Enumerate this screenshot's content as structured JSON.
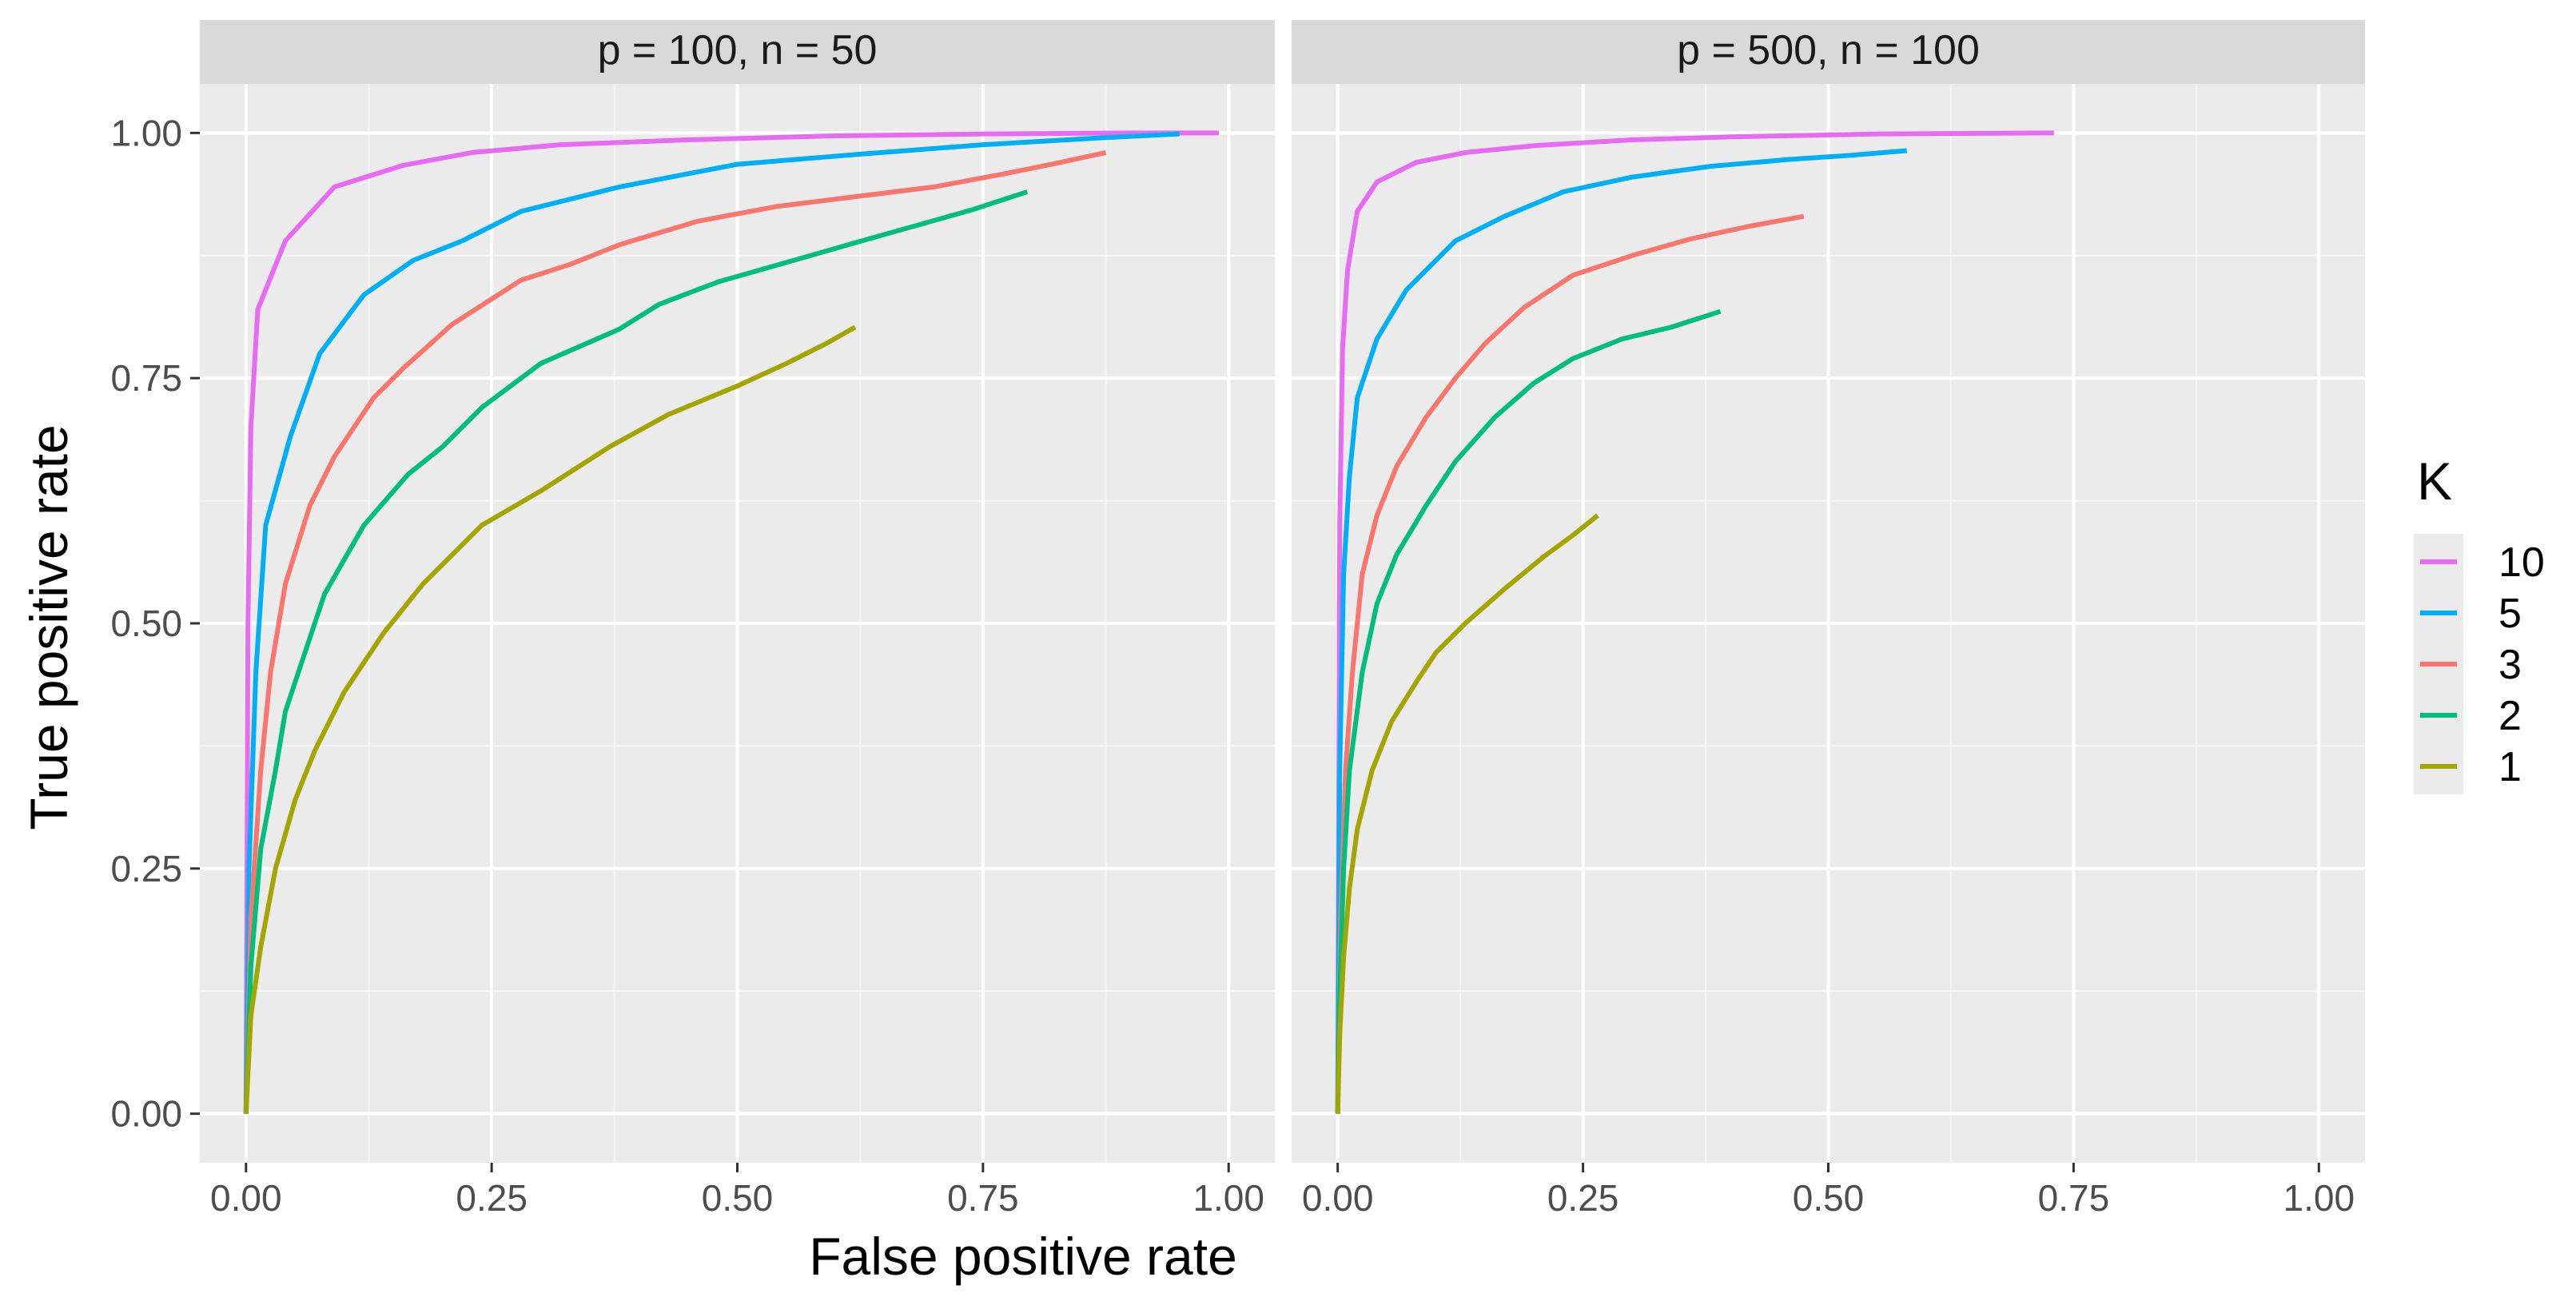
{
  "chart_data": {
    "type": "line",
    "xlabel": "False positive rate",
    "ylabel": "True positive rate",
    "xlim": [
      -0.047,
      1.047
    ],
    "ylim": [
      -0.05,
      1.05
    ],
    "x_ticks": [
      0,
      0.25,
      0.5,
      0.75,
      1
    ],
    "x_tick_labels": [
      "0.00",
      "0.25",
      "0.50",
      "0.75",
      "1.00"
    ],
    "y_ticks": [
      0,
      0.25,
      0.5,
      0.75,
      1
    ],
    "y_tick_labels": [
      "0.00",
      "0.25",
      "0.50",
      "0.75",
      "1.00"
    ],
    "grid": true,
    "legend": {
      "title": "K",
      "position": "right",
      "entries": [
        {
          "label": "10",
          "color": "#E76BF3"
        },
        {
          "label": "5",
          "color": "#00B0F6"
        },
        {
          "label": "3",
          "color": "#F8766D"
        },
        {
          "label": "2",
          "color": "#00BF7D"
        },
        {
          "label": "1",
          "color": "#A3A500"
        }
      ]
    },
    "panels": [
      {
        "strip": "p = 100, n = 50",
        "series": [
          {
            "name": "10",
            "color": "#E76BF3",
            "points": [
              [
                0,
                0
              ],
              [
                0.002,
                0.5
              ],
              [
                0.005,
                0.7
              ],
              [
                0.012,
                0.82
              ],
              [
                0.04,
                0.89
              ],
              [
                0.09,
                0.945
              ],
              [
                0.16,
                0.967
              ],
              [
                0.23,
                0.98
              ],
              [
                0.32,
                0.988
              ],
              [
                0.45,
                0.993
              ],
              [
                0.6,
                0.997
              ],
              [
                0.75,
                0.999
              ],
              [
                0.9,
                1.0
              ],
              [
                0.99,
                1.0
              ]
            ]
          },
          {
            "name": "5",
            "color": "#00B0F6",
            "points": [
              [
                0,
                0
              ],
              [
                0.003,
                0.25
              ],
              [
                0.01,
                0.45
              ],
              [
                0.02,
                0.6
              ],
              [
                0.045,
                0.69
              ],
              [
                0.075,
                0.775
              ],
              [
                0.12,
                0.835
              ],
              [
                0.17,
                0.87
              ],
              [
                0.22,
                0.89
              ],
              [
                0.28,
                0.92
              ],
              [
                0.38,
                0.945
              ],
              [
                0.5,
                0.968
              ],
              [
                0.62,
                0.978
              ],
              [
                0.75,
                0.988
              ],
              [
                0.87,
                0.995
              ],
              [
                0.95,
                0.999
              ]
            ]
          },
          {
            "name": "3",
            "color": "#F8766D",
            "points": [
              [
                0,
                0
              ],
              [
                0.005,
                0.2
              ],
              [
                0.015,
                0.35
              ],
              [
                0.025,
                0.45
              ],
              [
                0.04,
                0.54
              ],
              [
                0.065,
                0.62
              ],
              [
                0.09,
                0.67
              ],
              [
                0.13,
                0.73
              ],
              [
                0.16,
                0.76
              ],
              [
                0.21,
                0.805
              ],
              [
                0.28,
                0.85
              ],
              [
                0.33,
                0.866
              ],
              [
                0.38,
                0.886
              ],
              [
                0.46,
                0.91
              ],
              [
                0.54,
                0.925
              ],
              [
                0.62,
                0.935
              ],
              [
                0.7,
                0.945
              ],
              [
                0.77,
                0.958
              ],
              [
                0.82,
                0.968
              ],
              [
                0.875,
                0.98
              ]
            ]
          },
          {
            "name": "2",
            "color": "#00BF7D",
            "points": [
              [
                0,
                0
              ],
              [
                0.005,
                0.15
              ],
              [
                0.015,
                0.27
              ],
              [
                0.03,
                0.35
              ],
              [
                0.04,
                0.41
              ],
              [
                0.06,
                0.47
              ],
              [
                0.08,
                0.53
              ],
              [
                0.12,
                0.6
              ],
              [
                0.165,
                0.652
              ],
              [
                0.2,
                0.68
              ],
              [
                0.24,
                0.72
              ],
              [
                0.3,
                0.765
              ],
              [
                0.38,
                0.8
              ],
              [
                0.42,
                0.825
              ],
              [
                0.48,
                0.848
              ],
              [
                0.55,
                0.868
              ],
              [
                0.62,
                0.888
              ],
              [
                0.68,
                0.905
              ],
              [
                0.74,
                0.922
              ],
              [
                0.795,
                0.94
              ]
            ]
          },
          {
            "name": "1",
            "color": "#A3A500",
            "points": [
              [
                0,
                0
              ],
              [
                0.005,
                0.1
              ],
              [
                0.015,
                0.17
              ],
              [
                0.03,
                0.25
              ],
              [
                0.05,
                0.32
              ],
              [
                0.07,
                0.37
              ],
              [
                0.1,
                0.43
              ],
              [
                0.14,
                0.49
              ],
              [
                0.18,
                0.54
              ],
              [
                0.24,
                0.6
              ],
              [
                0.3,
                0.635
              ],
              [
                0.37,
                0.68
              ],
              [
                0.43,
                0.713
              ],
              [
                0.5,
                0.742
              ],
              [
                0.55,
                0.765
              ],
              [
                0.59,
                0.785
              ],
              [
                0.62,
                0.802
              ]
            ]
          }
        ]
      },
      {
        "strip": "p = 500, n = 100",
        "series": [
          {
            "name": "10",
            "color": "#E76BF3",
            "points": [
              [
                0,
                0
              ],
              [
                0.002,
                0.6
              ],
              [
                0.005,
                0.78
              ],
              [
                0.01,
                0.86
              ],
              [
                0.02,
                0.92
              ],
              [
                0.04,
                0.95
              ],
              [
                0.08,
                0.97
              ],
              [
                0.13,
                0.98
              ],
              [
                0.2,
                0.987
              ],
              [
                0.3,
                0.993
              ],
              [
                0.4,
                0.996
              ],
              [
                0.55,
                0.999
              ],
              [
                0.73,
                1.0
              ]
            ]
          },
          {
            "name": "5",
            "color": "#00B0F6",
            "points": [
              [
                0,
                0
              ],
              [
                0.002,
                0.35
              ],
              [
                0.006,
                0.55
              ],
              [
                0.012,
                0.65
              ],
              [
                0.02,
                0.73
              ],
              [
                0.04,
                0.79
              ],
              [
                0.07,
                0.84
              ],
              [
                0.12,
                0.89
              ],
              [
                0.17,
                0.915
              ],
              [
                0.23,
                0.94
              ],
              [
                0.3,
                0.955
              ],
              [
                0.38,
                0.966
              ],
              [
                0.46,
                0.973
              ],
              [
                0.52,
                0.977
              ],
              [
                0.58,
                0.982
              ]
            ]
          },
          {
            "name": "3",
            "color": "#F8766D",
            "points": [
              [
                0,
                0
              ],
              [
                0.003,
                0.2
              ],
              [
                0.008,
                0.35
              ],
              [
                0.015,
                0.45
              ],
              [
                0.025,
                0.55
              ],
              [
                0.04,
                0.61
              ],
              [
                0.06,
                0.66
              ],
              [
                0.09,
                0.71
              ],
              [
                0.12,
                0.75
              ],
              [
                0.15,
                0.785
              ],
              [
                0.19,
                0.822
              ],
              [
                0.24,
                0.855
              ],
              [
                0.3,
                0.875
              ],
              [
                0.36,
                0.892
              ],
              [
                0.42,
                0.905
              ],
              [
                0.475,
                0.915
              ]
            ]
          },
          {
            "name": "2",
            "color": "#00BF7D",
            "points": [
              [
                0,
                0
              ],
              [
                0.002,
                0.12
              ],
              [
                0.006,
                0.25
              ],
              [
                0.012,
                0.35
              ],
              [
                0.025,
                0.45
              ],
              [
                0.04,
                0.52
              ],
              [
                0.06,
                0.57
              ],
              [
                0.09,
                0.62
              ],
              [
                0.12,
                0.665
              ],
              [
                0.16,
                0.71
              ],
              [
                0.2,
                0.745
              ],
              [
                0.24,
                0.77
              ],
              [
                0.29,
                0.79
              ],
              [
                0.34,
                0.802
              ],
              [
                0.39,
                0.818
              ]
            ]
          },
          {
            "name": "1",
            "color": "#A3A500",
            "points": [
              [
                0,
                0
              ],
              [
                0.002,
                0.08
              ],
              [
                0.006,
                0.16
              ],
              [
                0.012,
                0.23
              ],
              [
                0.02,
                0.29
              ],
              [
                0.035,
                0.35
              ],
              [
                0.055,
                0.4
              ],
              [
                0.08,
                0.44
              ],
              [
                0.1,
                0.47
              ],
              [
                0.13,
                0.5
              ],
              [
                0.17,
                0.535
              ],
              [
                0.21,
                0.568
              ],
              [
                0.24,
                0.59
              ],
              [
                0.265,
                0.61
              ]
            ]
          }
        ]
      }
    ]
  }
}
